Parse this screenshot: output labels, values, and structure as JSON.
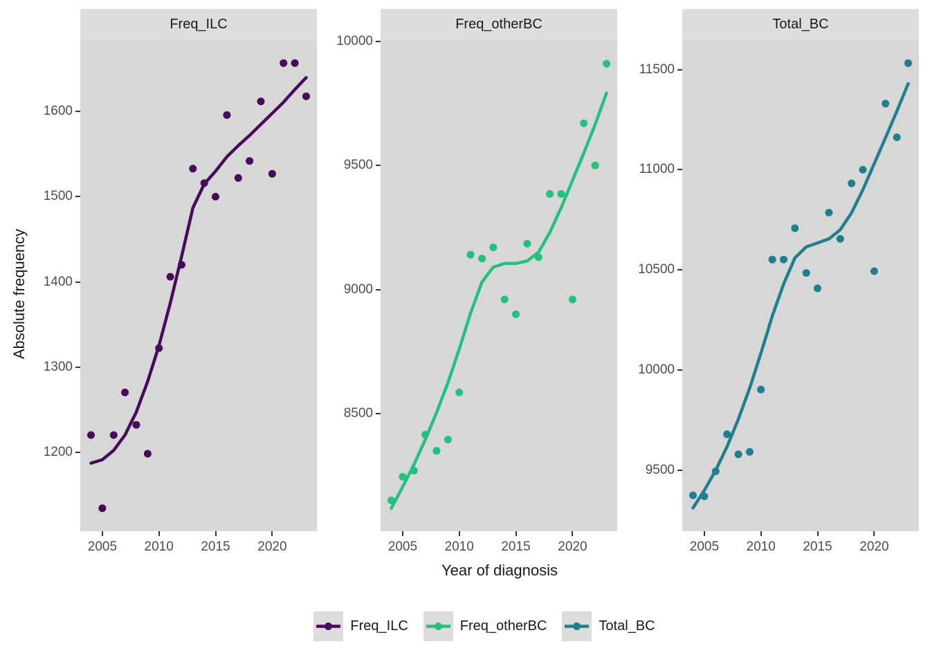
{
  "figure": {
    "background": "#ffffff",
    "strip_background": "#dddddd",
    "panel_background": "#d7d7d7",
    "legend_key_background": "#dcdcdc",
    "axis_text_color": "#4d4d4d",
    "tick_mark_color": "#333333"
  },
  "chart_data": {
    "type": "scatter",
    "smoother": "loess-line",
    "grid": "off",
    "legend_position": "bottom",
    "xlabel": "Year of diagnosis",
    "ylabel": "Absolute frequency",
    "x": [
      2004,
      2005,
      2006,
      2007,
      2008,
      2009,
      2010,
      2011,
      2012,
      2013,
      2014,
      2015,
      2016,
      2017,
      2018,
      2019,
      2020,
      2021,
      2022,
      2023
    ],
    "xlim": [
      2003.05,
      2023.95
    ],
    "xticks": [
      2005,
      2010,
      2015,
      2020
    ],
    "panels": [
      {
        "title": "Freq_ILC",
        "color": "#470b59",
        "ylim": [
          1107,
          1684
        ],
        "yticks": [
          1200,
          1300,
          1400,
          1500,
          1600
        ],
        "points": [
          1220,
          1134,
          1220,
          1270,
          1232,
          1198,
          1322,
          1406,
          1420,
          1533,
          1516,
          1500,
          1596,
          1522,
          1542,
          1612,
          1527,
          1657,
          1657,
          1618
        ],
        "smooth": [
          1187,
          1191,
          1202,
          1220,
          1247,
          1283,
          1325,
          1375,
          1430,
          1487,
          1515,
          1530,
          1547,
          1560,
          1572,
          1585,
          1598,
          1611,
          1626,
          1640
        ]
      },
      {
        "title": "Freq_otherBC",
        "color": "#22c17e",
        "ylim": [
          8026,
          10005
        ],
        "yticks": [
          8500,
          9000,
          9500,
          10000
        ],
        "points": [
          8150,
          8245,
          8270,
          8415,
          8350,
          8395,
          8585,
          9140,
          9125,
          9170,
          8960,
          8900,
          9185,
          9130,
          9385,
          9385,
          8960,
          9670,
          9500,
          9910
        ],
        "smooth": [
          8118,
          8205,
          8295,
          8395,
          8505,
          8625,
          8760,
          8905,
          9030,
          9090,
          9105,
          9105,
          9115,
          9150,
          9230,
          9330,
          9440,
          9550,
          9665,
          9792
        ]
      },
      {
        "title": "Total_BC",
        "color": "#1f7f8e",
        "ylim": [
          9196,
          11647
        ],
        "yticks": [
          9500,
          10000,
          10500,
          11000,
          11500
        ],
        "points": [
          9375,
          9370,
          9495,
          9680,
          9580,
          9592,
          9903,
          10552,
          10552,
          10708,
          10485,
          10408,
          10786,
          10655,
          10932,
          11000,
          10494,
          11330,
          11162,
          11532
        ],
        "smooth": [
          9312,
          9400,
          9500,
          9617,
          9755,
          9910,
          10085,
          10270,
          10430,
          10560,
          10615,
          10635,
          10655,
          10700,
          10785,
          10900,
          11030,
          11160,
          11292,
          11430
        ]
      }
    ]
  },
  "legend": {
    "entries": [
      "Freq_ILC",
      "Freq_otherBC",
      "Total_BC"
    ]
  }
}
